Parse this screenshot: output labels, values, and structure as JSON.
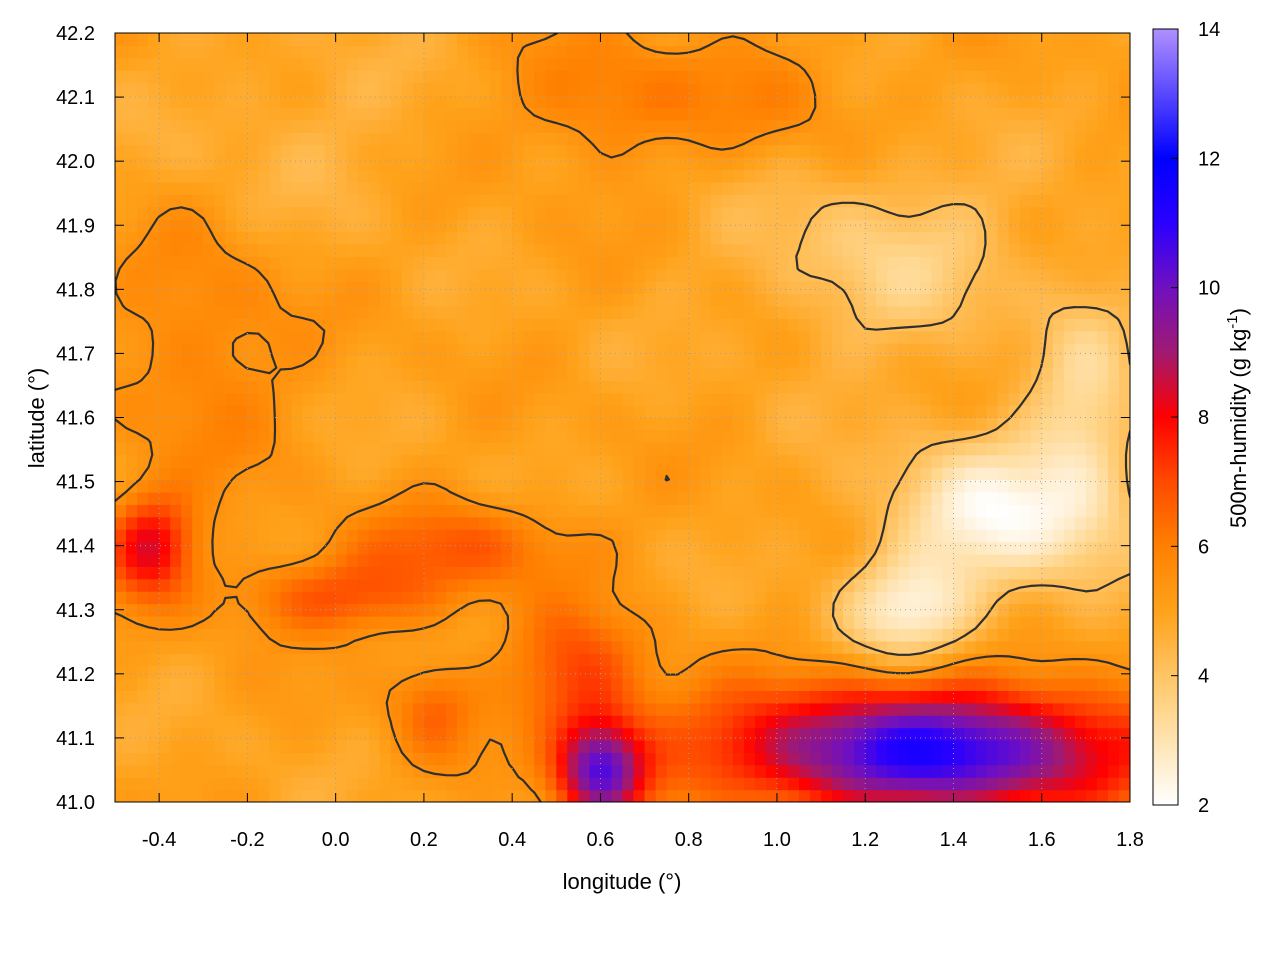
{
  "chart_data": {
    "type": "heatmap",
    "xlabel": "longitude (°)",
    "ylabel": "latitude (°)",
    "colorbar_label": "500m-humidity (g kg",
    "colorbar_label_exp": "-1",
    "colorbar_label_close": ")",
    "xlim": [
      -0.5,
      1.8
    ],
    "ylim": [
      41.0,
      42.2
    ],
    "clim": [
      2,
      14
    ],
    "xticks": [
      -0.4,
      -0.2,
      0.0,
      0.2,
      0.4,
      0.6,
      0.8,
      1.0,
      1.2,
      1.4,
      1.6,
      1.8
    ],
    "xtick_labels": [
      "-0.4",
      "-0.2",
      "0.0",
      "0.2",
      "0.4",
      "0.6",
      "0.8",
      "1.0",
      "1.2",
      "1.4",
      "1.6",
      "1.8"
    ],
    "yticks": [
      41.0,
      41.1,
      41.2,
      41.3,
      41.4,
      41.5,
      41.6,
      41.7,
      41.8,
      41.9,
      42.0,
      42.1,
      42.2
    ],
    "ytick_labels": [
      "41.0",
      "41.1",
      "41.2",
      "41.3",
      "41.4",
      "41.5",
      "41.6",
      "41.7",
      "41.8",
      "41.9",
      "42.0",
      "42.1",
      "42.2"
    ],
    "cticks": [
      2,
      4,
      6,
      8,
      10,
      12,
      14
    ],
    "ctick_labels": [
      "2",
      "4",
      "6",
      "8",
      "10",
      "12",
      "14"
    ],
    "colormap": [
      {
        "v": 2,
        "color": "#ffffff"
      },
      {
        "v": 3.5,
        "color": "#ffd58a"
      },
      {
        "v": 5,
        "color": "#ffa21a"
      },
      {
        "v": 6,
        "color": "#ff8000"
      },
      {
        "v": 7,
        "color": "#ff4a00"
      },
      {
        "v": 8,
        "color": "#ff0000"
      },
      {
        "v": 9,
        "color": "#a01a70"
      },
      {
        "v": 10,
        "color": "#7010c0"
      },
      {
        "v": 11,
        "color": "#2a00ff"
      },
      {
        "v": 12,
        "color": "#0000ff"
      },
      {
        "v": 14,
        "color": "#b090ff"
      }
    ],
    "grid": true,
    "features": [
      {
        "lon": 0.3,
        "lat": 41.4,
        "value": 1.6,
        "r_lon": 0.25,
        "r_lat": 0.07
      },
      {
        "lon": 0.0,
        "lat": 41.32,
        "value": 1.8,
        "r_lon": 0.25,
        "r_lat": 0.06
      },
      {
        "lon": -0.42,
        "lat": 41.4,
        "value": 3.2,
        "r_lon": 0.1,
        "r_lat": 0.08
      },
      {
        "lon": 0.55,
        "lat": 41.2,
        "value": 2.0,
        "r_lon": 0.15,
        "r_lat": 0.1
      },
      {
        "lon": 0.6,
        "lat": 41.05,
        "value": 4.8,
        "r_lon": 0.1,
        "r_lat": 0.08
      },
      {
        "lon": 0.22,
        "lat": 41.15,
        "value": 1.4,
        "r_lon": 0.1,
        "r_lat": 0.08
      },
      {
        "lon": 1.35,
        "lat": 41.08,
        "value": 6.0,
        "r_lon": 0.5,
        "r_lat": 0.1
      },
      {
        "lon": 1.5,
        "lat": 41.45,
        "value": -2.6,
        "r_lon": 0.25,
        "r_lat": 0.12
      },
      {
        "lon": 1.3,
        "lat": 41.3,
        "value": -2.2,
        "r_lon": 0.15,
        "r_lat": 0.08
      },
      {
        "lon": 1.25,
        "lat": 41.85,
        "value": -1.3,
        "r_lon": 0.3,
        "r_lat": 0.15
      },
      {
        "lon": 1.7,
        "lat": 41.6,
        "value": -1.5,
        "r_lon": 0.12,
        "r_lat": 0.2
      },
      {
        "lon": 0.6,
        "lat": 42.1,
        "value": 1.2,
        "r_lon": 0.2,
        "r_lat": 0.1
      },
      {
        "lon": 1.0,
        "lat": 42.1,
        "value": 0.8,
        "r_lon": 0.2,
        "r_lat": 0.1
      },
      {
        "lon": -0.3,
        "lat": 41.7,
        "value": 1.0,
        "r_lon": 0.2,
        "r_lat": 0.2
      },
      {
        "lon": -0.1,
        "lat": 42.05,
        "value": -0.5,
        "r_lon": 0.3,
        "r_lat": 0.15
      }
    ],
    "background_value": 5.0,
    "contour_levels": [
      5.5,
      4.2
    ]
  }
}
